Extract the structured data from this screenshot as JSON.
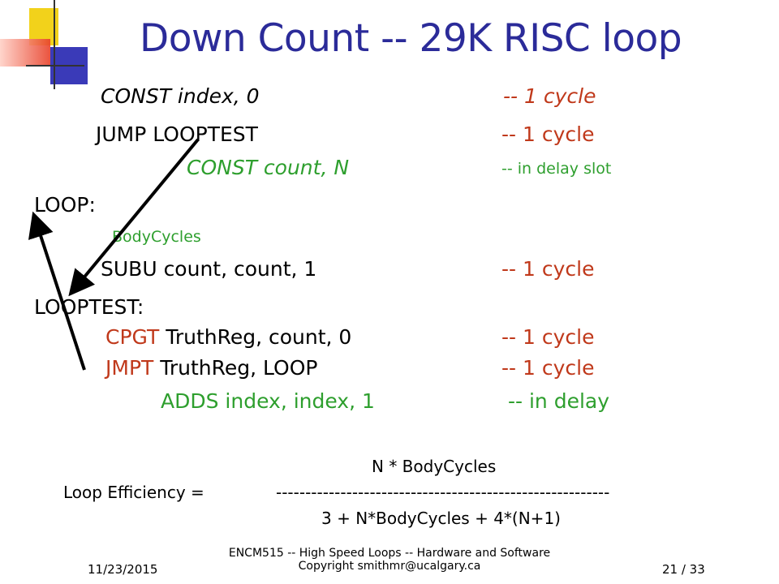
{
  "colors": {
    "title": "#2b2b99",
    "red": "#c0391b",
    "green": "#2e9f2e",
    "deco_yellow": "#f2d21b",
    "deco_red": "#e8412a",
    "deco_blue": "#3a3ab8"
  },
  "slide": {
    "title": "Down Count  -- 29K RISC loop",
    "lines": {
      "const_index": "CONST index, 0",
      "const_index_comment": "-- 1 cycle",
      "jump_looptest": "JUMP LOOPTEST",
      "jump_comment": "-- 1 cycle",
      "const_count": "CONST count, N",
      "const_count_comment": "--  in delay slot",
      "loop_label": "LOOP:",
      "body_cycles": "BodyCycles",
      "subu": "SUBU count, count, 1",
      "subu_comment": "-- 1 cycle",
      "looptest_label": "LOOPTEST:",
      "cpgt_op": "CPGT",
      "cpgt_args": " TruthReg, count, 0",
      "cpgt_comment": "-- 1 cycle",
      "jmpt_op": "JMPT",
      "jmpt_args": " TruthReg, LOOP",
      "jmpt_comment": "-- 1 cycle",
      "adds": "ADDS index, index, 1",
      "adds_comment": "-- in delay"
    },
    "formula": {
      "numerator": "N * BodyCycles",
      "label": "Loop Efficiency =",
      "divider": "---------------------------------------------------------",
      "denominator": "3 + N*BodyCycles + 4*(N+1)"
    }
  },
  "footer": {
    "date": "11/23/2015",
    "course_line1": "ENCM515 -- High Speed Loops -- Hardware and Software",
    "course_line2": "Copyright smithmr@ucalgary.ca",
    "page": "21 / 33"
  }
}
